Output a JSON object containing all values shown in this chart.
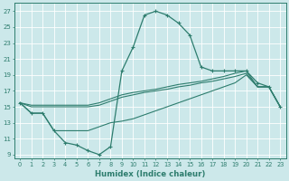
{
  "xlabel": "Humidex (Indice chaleur)",
  "ylabel": "",
  "bg_color": "#cce8ea",
  "grid_color": "#ffffff",
  "line_color": "#2e7d6e",
  "x_ticks": [
    0,
    1,
    2,
    3,
    4,
    5,
    6,
    7,
    8,
    9,
    10,
    11,
    12,
    13,
    14,
    15,
    16,
    17,
    18,
    19,
    20,
    21,
    22,
    23
  ],
  "y_ticks": [
    9,
    11,
    13,
    15,
    17,
    19,
    21,
    23,
    25,
    27
  ],
  "xlim": [
    -0.5,
    23.5
  ],
  "ylim": [
    8.5,
    28.0
  ],
  "series": [
    {
      "x": [
        0,
        1,
        2,
        3,
        4,
        5,
        6,
        7,
        8,
        9,
        10,
        11,
        12,
        13,
        14,
        15,
        16,
        17,
        18,
        19,
        20,
        21,
        22,
        23
      ],
      "y": [
        15.5,
        14.2,
        14.2,
        12.0,
        10.5,
        10.2,
        9.5,
        9.0,
        10.0,
        19.5,
        22.5,
        26.5,
        27.0,
        26.5,
        25.5,
        24.0,
        20.0,
        19.5,
        19.5,
        19.5,
        19.5,
        18.0,
        17.5,
        15.0
      ],
      "marker": true
    },
    {
      "x": [
        0,
        1,
        2,
        3,
        4,
        5,
        6,
        7,
        8,
        9,
        10,
        11,
        12,
        13,
        14,
        15,
        16,
        17,
        18,
        19,
        20,
        21,
        22,
        23
      ],
      "y": [
        15.5,
        15.2,
        15.2,
        15.2,
        15.2,
        15.2,
        15.2,
        15.5,
        16.0,
        16.5,
        16.8,
        17.0,
        17.2,
        17.5,
        17.8,
        18.0,
        18.2,
        18.5,
        18.8,
        19.2,
        19.5,
        17.5,
        17.5,
        15.0
      ],
      "marker": false
    },
    {
      "x": [
        0,
        1,
        2,
        3,
        4,
        5,
        6,
        7,
        8,
        9,
        10,
        11,
        12,
        13,
        14,
        15,
        16,
        17,
        18,
        19,
        20,
        21,
        22,
        23
      ],
      "y": [
        15.5,
        15.0,
        15.0,
        15.0,
        15.0,
        15.0,
        15.0,
        15.2,
        15.7,
        16.2,
        16.5,
        16.8,
        17.0,
        17.2,
        17.5,
        17.7,
        18.0,
        18.2,
        18.5,
        18.8,
        19.2,
        17.5,
        17.5,
        15.0
      ],
      "marker": false
    },
    {
      "x": [
        0,
        1,
        2,
        3,
        4,
        5,
        6,
        7,
        8,
        9,
        10,
        11,
        12,
        13,
        14,
        15,
        16,
        17,
        18,
        19,
        20,
        21,
        22,
        23
      ],
      "y": [
        15.5,
        14.2,
        14.2,
        12.0,
        12.0,
        12.0,
        12.0,
        12.5,
        13.0,
        13.2,
        13.5,
        14.0,
        14.5,
        15.0,
        15.5,
        16.0,
        16.5,
        17.0,
        17.5,
        18.0,
        19.0,
        17.5,
        17.5,
        15.0
      ],
      "marker": false
    }
  ]
}
